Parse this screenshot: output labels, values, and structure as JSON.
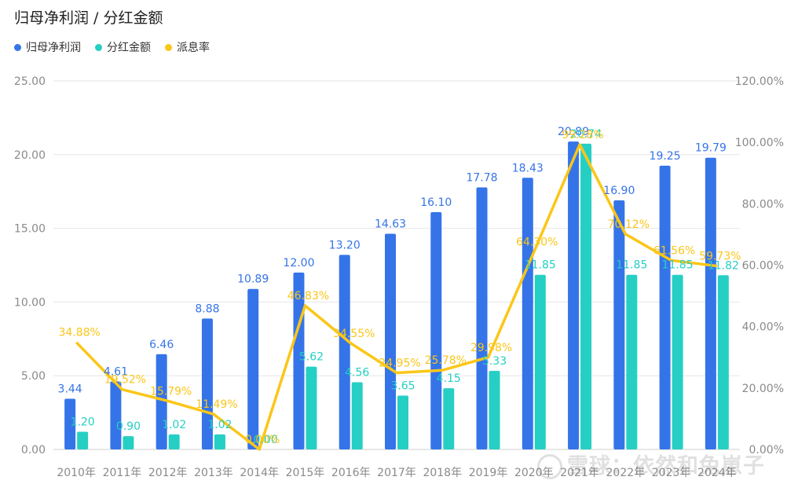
{
  "title": "归母净利润 / 分红金额",
  "legend": [
    {
      "label": "归母净利润",
      "color": "#3574e8"
    },
    {
      "label": "分红金额",
      "color": "#26cfc4"
    },
    {
      "label": "派息率",
      "color": "#fbc618"
    }
  ],
  "watermark": "雪球：依然和兔崽子",
  "chart_data": {
    "type": "bar",
    "categories": [
      "2010年",
      "2011年",
      "2012年",
      "2013年",
      "2014年",
      "2015年",
      "2016年",
      "2017年",
      "2018年",
      "2019年",
      "2020年",
      "2021年",
      "2022年",
      "2023年",
      "2024年"
    ],
    "left_axis": {
      "ylim": [
        0,
        25
      ],
      "ticks": [
        "0.00",
        "5.00",
        "10.00",
        "15.00",
        "20.00",
        "25.00"
      ]
    },
    "right_axis": {
      "ylim": [
        0,
        120
      ],
      "ticks": [
        "0.00%",
        "20.00%",
        "40.00%",
        "60.00%",
        "80.00%",
        "100.00%",
        "120.00%"
      ]
    },
    "series": [
      {
        "name": "归母净利润",
        "type": "bar",
        "axis": "left",
        "color": "#3574e8",
        "values": [
          3.44,
          4.61,
          6.46,
          8.88,
          10.89,
          12.0,
          13.2,
          14.63,
          16.1,
          17.78,
          18.43,
          20.89,
          16.9,
          19.25,
          19.79
        ],
        "labels": [
          "3.44",
          "4.61",
          "6.46",
          "8.88",
          "10.89",
          "12.00",
          "13.20",
          "14.63",
          "16.10",
          "17.78",
          "18.43",
          "20.89",
          "16.90",
          "19.25",
          "19.79"
        ]
      },
      {
        "name": "分红金额",
        "type": "bar",
        "axis": "left",
        "color": "#26cfc4",
        "values": [
          1.2,
          0.9,
          1.02,
          1.02,
          0.0,
          5.62,
          4.56,
          3.65,
          4.15,
          5.33,
          11.85,
          20.74,
          11.85,
          11.85,
          11.82
        ],
        "labels": [
          "1.20",
          "0.90",
          "1.02",
          "1.02",
          "0.00",
          "5.62",
          "4.56",
          "3.65",
          "4.15",
          "5.33",
          "11.85",
          "20.74",
          "11.85",
          "11.85",
          "11.82"
        ]
      },
      {
        "name": "派息率",
        "type": "line",
        "axis": "right",
        "color": "#fbc618",
        "values": [
          34.88,
          19.52,
          15.79,
          11.49,
          0.0,
          46.83,
          34.55,
          24.95,
          25.78,
          29.98,
          64.3,
          99.28,
          70.12,
          61.56,
          59.73
        ],
        "labels": [
          "34.88%",
          "19.52%",
          "15.79%",
          "11.49%",
          "0.00%",
          "46.83%",
          "34.55%",
          "24.95%",
          "25.78%",
          "29.98%",
          "64.30%",
          "99.28%",
          "70.12%",
          "61.56%",
          "59.73%"
        ]
      }
    ],
    "grid": true,
    "legend_position": "top-left"
  }
}
